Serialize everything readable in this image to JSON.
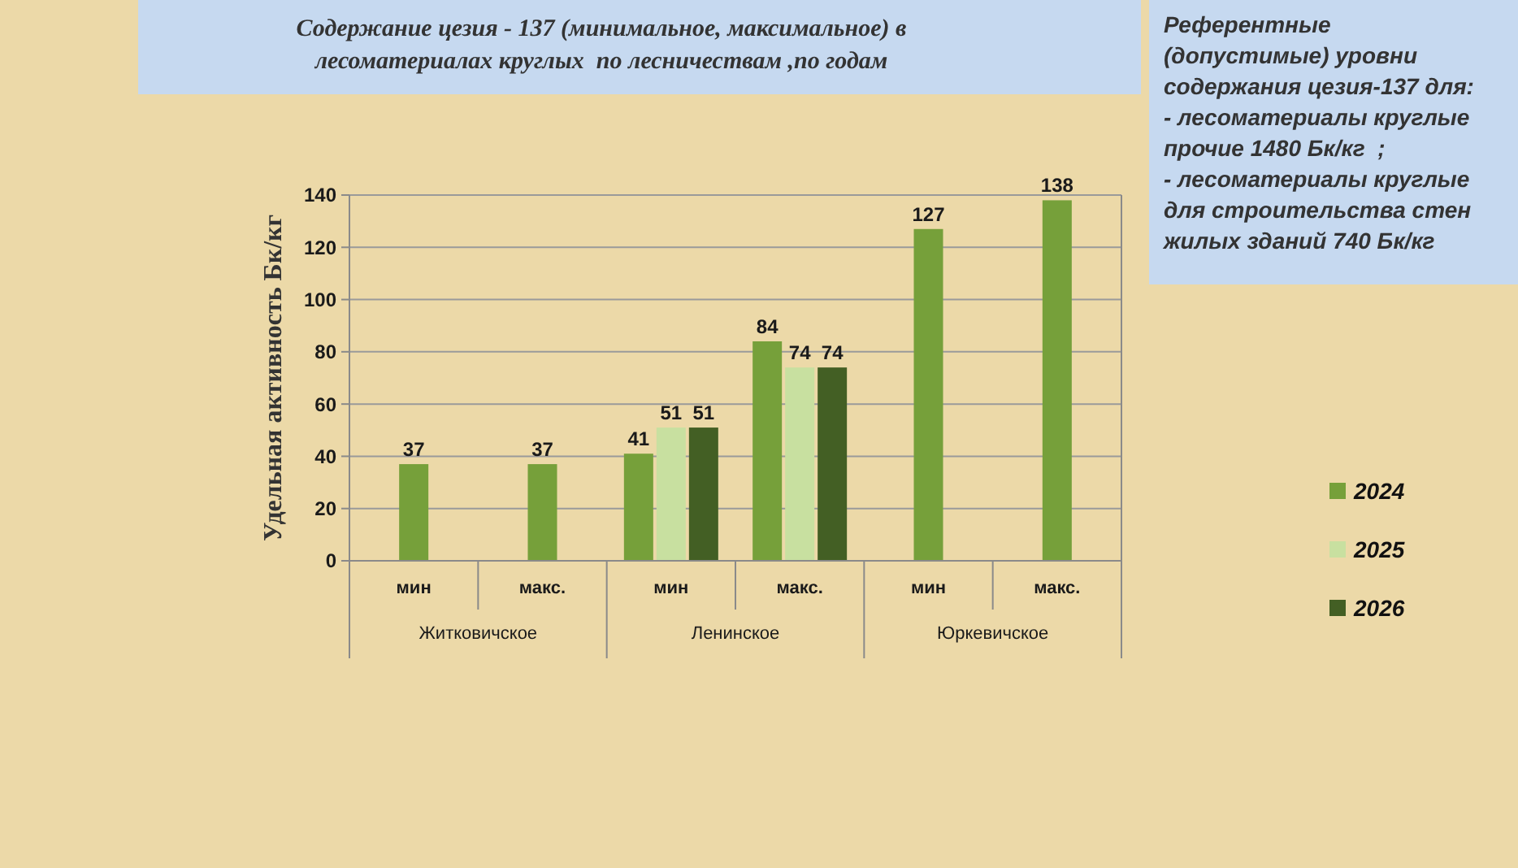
{
  "chart_data": {
    "type": "bar",
    "title": "Содержание цезия - 137 (минимальное, максимальное) в\nлесоматериалах круглых  по лесничествам ,по годам",
    "ylabel": "Удельная активность Бк/кг",
    "categories": [
      "мин",
      "макс.",
      "мин",
      "макс.",
      "мин",
      "макс."
    ],
    "series": [
      {
        "name": "2024",
        "color": "#76a03a",
        "values": [
          37,
          37,
          41,
          84,
          127,
          138
        ]
      },
      {
        "name": "2025",
        "color": "#c8e0a0",
        "values": [
          null,
          null,
          51,
          74,
          null,
          null
        ]
      },
      {
        "name": "2026",
        "color": "#435f24",
        "values": [
          null,
          null,
          51,
          74,
          null,
          null
        ]
      }
    ],
    "ylim": [
      0,
      140
    ],
    "yticks": [
      0,
      20,
      40,
      60,
      80,
      100,
      120,
      140
    ],
    "grid": "y",
    "legend": "right",
    "data_labels": true,
    "annotations": [
      "Житковичское",
      "Ленинское",
      "Юркевичское",
      "Референтные\n(допустимые) уровни\nсодержания цезия-137 для:\n- лесоматериалы круглые\nпрочие 1480 Бк/кг  ;\n- лесоматериалы круглые\nдля строительства стен\nжилых зданий 740 Бк/кг"
    ]
  }
}
